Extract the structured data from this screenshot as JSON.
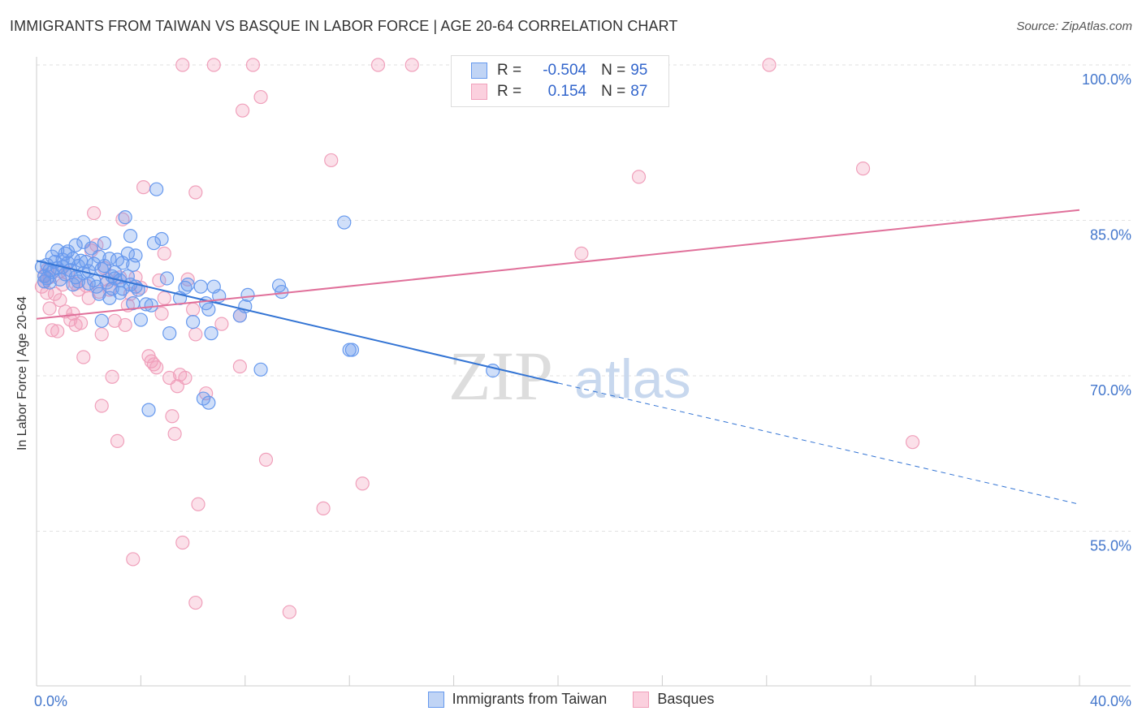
{
  "header": {
    "title": "IMMIGRANTS FROM TAIWAN VS BASQUE IN LABOR FORCE | AGE 20-64 CORRELATION CHART",
    "source": "Source: ZipAtlas.com"
  },
  "watermark": {
    "zip": "ZIP",
    "atlas": "atlas"
  },
  "legend": {
    "rows": [
      {
        "r_label": "R =",
        "r_value": "-0.504",
        "n_label": "N =",
        "n_value": "95"
      },
      {
        "r_label": "R =",
        "r_value": "0.154",
        "n_label": "N =",
        "n_value": "87"
      }
    ]
  },
  "chart_data": {
    "type": "scatter",
    "title": "IMMIGRANTS FROM TAIWAN VS BASQUE IN LABOR FORCE | AGE 20-64 CORRELATION CHART",
    "xlabel": "",
    "ylabel": "In Labor Force | Age 20-64",
    "xlim": [
      0,
      40
    ],
    "ylim": [
      41,
      101.5
    ],
    "x_tick_labels": [
      "0.0%",
      "40.0%"
    ],
    "y_ticks": [
      100,
      85,
      70,
      55
    ],
    "y_tick_labels": [
      "100.0%",
      "85.0%",
      "70.0%",
      "55.0%"
    ],
    "grid": true,
    "legend_position": "top-center",
    "colors": {
      "taiwan": "#6699ee",
      "taiwan_line": "#3374d4",
      "basque": "#f0a0bb",
      "basque_line": "#e0709a",
      "tick_text": "#4477cc"
    },
    "series": [
      {
        "name": "Immigrants from Taiwan",
        "r": -0.504,
        "n": 95,
        "trend": {
          "x0": 0,
          "y0": 81.1,
          "x1": 20,
          "y1": 69.3,
          "dash_to_x": 40,
          "dash_to_y": 57.6
        },
        "points": [
          [
            0.2,
            80.5
          ],
          [
            0.3,
            79.6
          ],
          [
            0.3,
            79.1
          ],
          [
            0.4,
            80.7
          ],
          [
            0.5,
            80.2
          ],
          [
            0.5,
            79.0
          ],
          [
            0.6,
            81.5
          ],
          [
            0.6,
            80.0
          ],
          [
            0.7,
            81.0
          ],
          [
            0.8,
            82.1
          ],
          [
            0.8,
            80.4
          ],
          [
            0.9,
            79.3
          ],
          [
            1.0,
            81.2
          ],
          [
            1.0,
            80.5
          ],
          [
            1.1,
            81.8
          ],
          [
            1.1,
            79.8
          ],
          [
            1.2,
            82.0
          ],
          [
            1.2,
            80.9
          ],
          [
            1.3,
            80.2
          ],
          [
            1.4,
            78.8
          ],
          [
            1.4,
            81.3
          ],
          [
            1.5,
            79.5
          ],
          [
            1.5,
            82.6
          ],
          [
            1.6,
            80.6
          ],
          [
            1.7,
            81.1
          ],
          [
            1.8,
            82.9
          ],
          [
            1.8,
            79.9
          ],
          [
            1.9,
            81.0
          ],
          [
            2.0,
            80.1
          ],
          [
            2.0,
            78.9
          ],
          [
            2.1,
            82.3
          ],
          [
            2.2,
            80.8
          ],
          [
            2.2,
            79.2
          ],
          [
            2.3,
            78.6
          ],
          [
            2.4,
            81.5
          ],
          [
            2.4,
            77.9
          ],
          [
            2.5,
            80.3
          ],
          [
            2.5,
            75.3
          ],
          [
            2.6,
            82.8
          ],
          [
            2.6,
            80.6
          ],
          [
            2.7,
            79.0
          ],
          [
            2.8,
            81.3
          ],
          [
            2.8,
            77.5
          ],
          [
            2.9,
            78.4
          ],
          [
            3.0,
            80.0
          ],
          [
            3.0,
            79.4
          ],
          [
            3.1,
            81.2
          ],
          [
            3.2,
            79.2
          ],
          [
            3.2,
            78.0
          ],
          [
            3.3,
            80.9
          ],
          [
            3.4,
            85.3
          ],
          [
            3.5,
            81.8
          ],
          [
            3.5,
            79.6
          ],
          [
            3.6,
            83.5
          ],
          [
            3.6,
            78.8
          ],
          [
            3.7,
            80.7
          ],
          [
            3.7,
            77.0
          ],
          [
            3.8,
            81.6
          ],
          [
            3.8,
            78.6
          ],
          [
            3.9,
            78.3
          ],
          [
            4.0,
            75.4
          ],
          [
            4.2,
            76.9
          ],
          [
            4.4,
            76.8
          ],
          [
            4.5,
            82.8
          ],
          [
            4.6,
            88.0
          ],
          [
            4.8,
            83.2
          ],
          [
            5.0,
            79.4
          ],
          [
            5.1,
            74.1
          ],
          [
            5.5,
            77.5
          ],
          [
            5.8,
            78.8
          ],
          [
            6.0,
            75.2
          ],
          [
            6.3,
            78.6
          ],
          [
            6.5,
            77.0
          ],
          [
            6.6,
            76.4
          ],
          [
            6.7,
            74.1
          ],
          [
            6.8,
            78.6
          ],
          [
            7.0,
            77.7
          ],
          [
            7.8,
            75.8
          ],
          [
            8.1,
            77.8
          ],
          [
            8.0,
            76.7
          ],
          [
            9.3,
            78.7
          ],
          [
            9.4,
            78.1
          ],
          [
            11.8,
            84.8
          ],
          [
            12.0,
            72.5
          ],
          [
            12.1,
            72.5
          ],
          [
            17.5,
            70.5
          ],
          [
            8.6,
            70.6
          ],
          [
            4.3,
            66.7
          ],
          [
            6.4,
            67.8
          ],
          [
            6.6,
            67.4
          ],
          [
            3.3,
            78.4
          ],
          [
            2.9,
            79.6
          ],
          [
            5.7,
            78.5
          ],
          [
            1.6,
            79.1
          ],
          [
            0.4,
            79.4
          ]
        ]
      },
      {
        "name": "Basques",
        "r": 0.154,
        "n": 87,
        "trend": {
          "x0": 0,
          "y0": 75.5,
          "x1": 40,
          "y1": 86.0
        },
        "points": [
          [
            0.2,
            78.6
          ],
          [
            0.3,
            79.1
          ],
          [
            0.4,
            80.2
          ],
          [
            0.4,
            78.0
          ],
          [
            0.5,
            79.5
          ],
          [
            0.5,
            76.5
          ],
          [
            0.6,
            74.4
          ],
          [
            0.7,
            77.9
          ],
          [
            0.8,
            74.3
          ],
          [
            0.9,
            77.3
          ],
          [
            1.0,
            78.8
          ],
          [
            1.1,
            76.2
          ],
          [
            1.2,
            79.9
          ],
          [
            1.3,
            75.4
          ],
          [
            1.4,
            76.0
          ],
          [
            1.5,
            74.9
          ],
          [
            1.6,
            78.3
          ],
          [
            1.7,
            75.1
          ],
          [
            1.8,
            71.8
          ],
          [
            1.9,
            78.7
          ],
          [
            2.0,
            77.5
          ],
          [
            2.1,
            82.1
          ],
          [
            2.2,
            85.7
          ],
          [
            2.3,
            82.6
          ],
          [
            2.4,
            78.1
          ],
          [
            2.5,
            74.0
          ],
          [
            2.5,
            67.1
          ],
          [
            2.7,
            79.3
          ],
          [
            2.8,
            78.3
          ],
          [
            2.9,
            69.9
          ],
          [
            3.0,
            75.3
          ],
          [
            3.1,
            63.7
          ],
          [
            3.2,
            79.5
          ],
          [
            3.3,
            85.1
          ],
          [
            3.4,
            74.9
          ],
          [
            3.6,
            77.9
          ],
          [
            3.7,
            52.3
          ],
          [
            3.8,
            79.5
          ],
          [
            4.0,
            78.5
          ],
          [
            4.1,
            88.2
          ],
          [
            4.3,
            71.9
          ],
          [
            4.4,
            71.4
          ],
          [
            4.5,
            71.1
          ],
          [
            4.6,
            70.8
          ],
          [
            4.7,
            79.2
          ],
          [
            4.8,
            76.0
          ],
          [
            4.9,
            81.8
          ],
          [
            5.1,
            69.8
          ],
          [
            5.2,
            66.1
          ],
          [
            5.3,
            64.4
          ],
          [
            5.4,
            69.0
          ],
          [
            5.5,
            70.1
          ],
          [
            5.6,
            53.9
          ],
          [
            5.7,
            69.8
          ],
          [
            5.8,
            79.3
          ],
          [
            6.0,
            76.4
          ],
          [
            6.1,
            74.0
          ],
          [
            6.1,
            87.7
          ],
          [
            6.1,
            48.1
          ],
          [
            6.2,
            57.6
          ],
          [
            5.6,
            100.0
          ],
          [
            6.8,
            100.0
          ],
          [
            8.3,
            100.0
          ],
          [
            13.1,
            100.0
          ],
          [
            14.4,
            100.0
          ],
          [
            28.1,
            100.0
          ],
          [
            8.6,
            96.9
          ],
          [
            7.9,
            95.6
          ],
          [
            11.3,
            90.8
          ],
          [
            23.1,
            89.2
          ],
          [
            31.7,
            90.0
          ],
          [
            20.9,
            81.8
          ],
          [
            6.5,
            68.3
          ],
          [
            7.8,
            75.8
          ],
          [
            7.8,
            70.9
          ],
          [
            8.8,
            61.9
          ],
          [
            9.7,
            47.2
          ],
          [
            11.0,
            57.2
          ],
          [
            12.5,
            59.6
          ],
          [
            33.6,
            63.6
          ],
          [
            0.3,
            79.7
          ],
          [
            0.9,
            80.1
          ],
          [
            2.6,
            80.4
          ],
          [
            1.5,
            78.9
          ],
          [
            3.5,
            76.8
          ],
          [
            4.9,
            77.5
          ],
          [
            7.1,
            75.0
          ]
        ]
      }
    ]
  },
  "bottom_legend": {
    "items": [
      {
        "label": "Immigrants from Taiwan"
      },
      {
        "label": "Basques"
      }
    ]
  }
}
